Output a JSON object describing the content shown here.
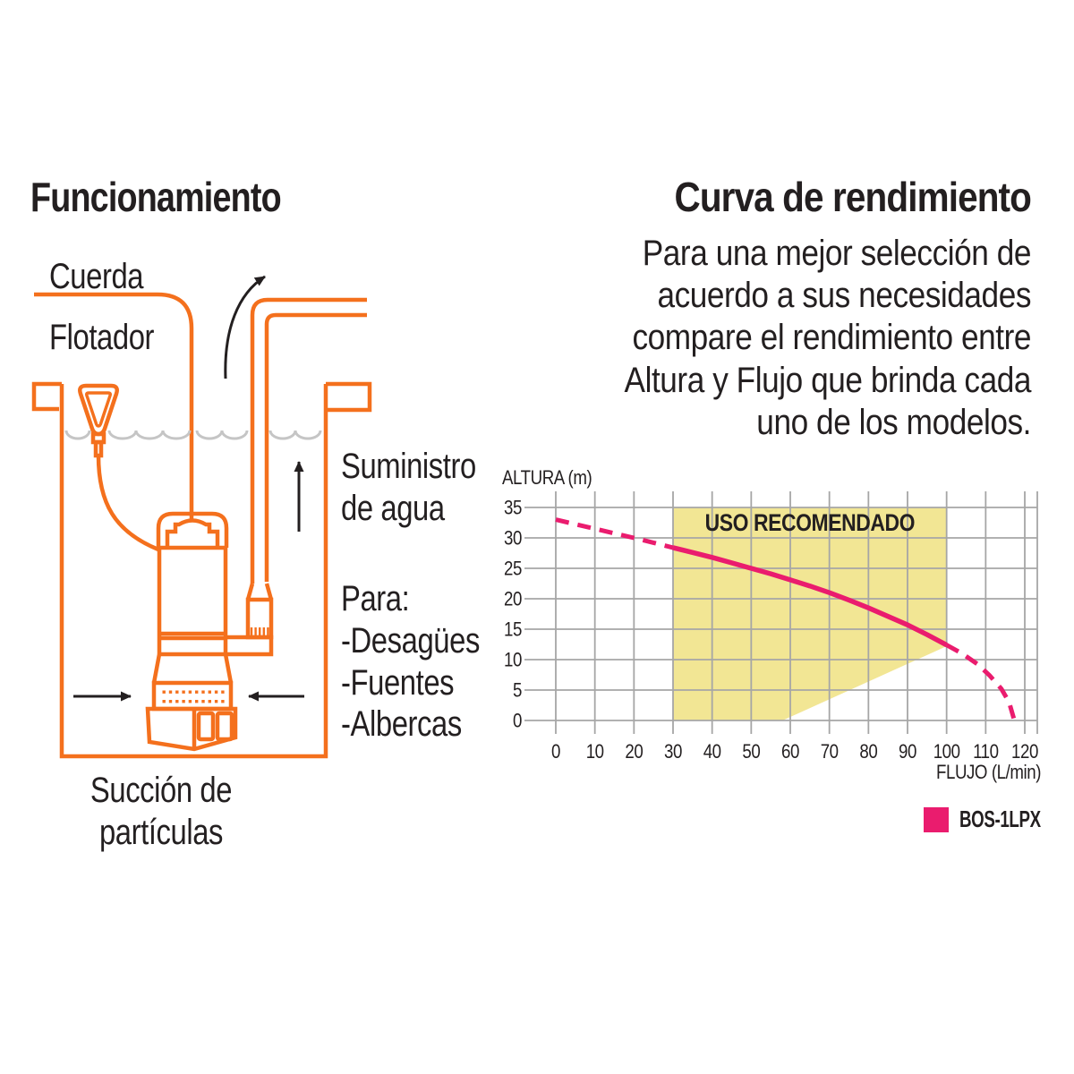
{
  "titles": {
    "left": "Funcionamiento",
    "right": "Curva de rendimiento"
  },
  "intro_paragraph": "Para una mejor selección de\nacuerdo a sus necesidades\ncompare el rendimiento entre\nAltura y Flujo que brinda cada\nuno de los modelos.",
  "diagram": {
    "labels": {
      "rope": "Cuerda",
      "float": "Flotador",
      "water_supply": "Suministro\nde agua",
      "uses": "Para:\n-Desagües\n-Fuentes\n-Albercas",
      "suction": "Succión de\npartículas"
    },
    "colors": {
      "outline_orange": "#F4701D",
      "arrow_black": "#231F20",
      "water_gray": "#C5C5C5"
    }
  },
  "chart_data": {
    "type": "line",
    "title": "",
    "xlabel": "FLUJO (L/min)",
    "ylabel": "ALTURA (m)",
    "xlim": [
      0,
      120
    ],
    "ylim": [
      0,
      35
    ],
    "xticks": [
      0,
      10,
      20,
      30,
      40,
      50,
      60,
      70,
      80,
      90,
      100,
      110,
      120
    ],
    "yticks": [
      0,
      5,
      10,
      15,
      20,
      25,
      30,
      35
    ],
    "grid": true,
    "grid_color": "#A6A6A6",
    "legend_position": "bottom-right",
    "series": [
      {
        "name": "BOS-1LPX",
        "color": "#EA1C6E",
        "solid": [
          [
            30,
            28.4
          ],
          [
            35,
            27.6
          ],
          [
            40,
            26.8
          ],
          [
            45,
            25.9
          ],
          [
            50,
            25.0
          ],
          [
            55,
            24.1
          ],
          [
            60,
            23.1
          ],
          [
            65,
            22.1
          ],
          [
            70,
            21.0
          ],
          [
            75,
            19.8
          ],
          [
            80,
            18.5
          ],
          [
            85,
            17.1
          ],
          [
            90,
            15.7
          ],
          [
            95,
            14.1
          ],
          [
            100,
            12.4
          ]
        ],
        "dashed": [
          [
            [
              0,
              33
            ],
            [
              10,
              31.5
            ],
            [
              20,
              30.0
            ],
            [
              25,
              29.2
            ],
            [
              30,
              28.4
            ]
          ],
          [
            [
              100,
              12.4
            ],
            [
              104,
              11.0
            ],
            [
              108,
              9.2
            ],
            [
              111,
              7.4
            ],
            [
              114,
              5.2
            ],
            [
              116,
              3.0
            ],
            [
              117.2,
              0.3
            ]
          ]
        ]
      }
    ],
    "recommended_zone": {
      "label": "USO RECOMENDADO",
      "fill": "#F2E694",
      "polygon": [
        [
          30,
          0
        ],
        [
          30,
          35
        ],
        [
          100,
          35
        ],
        [
          100,
          12.2
        ],
        [
          58,
          0
        ]
      ]
    },
    "legend": [
      {
        "label": "BOS-1LPX",
        "color": "#EA1C6E"
      }
    ]
  }
}
